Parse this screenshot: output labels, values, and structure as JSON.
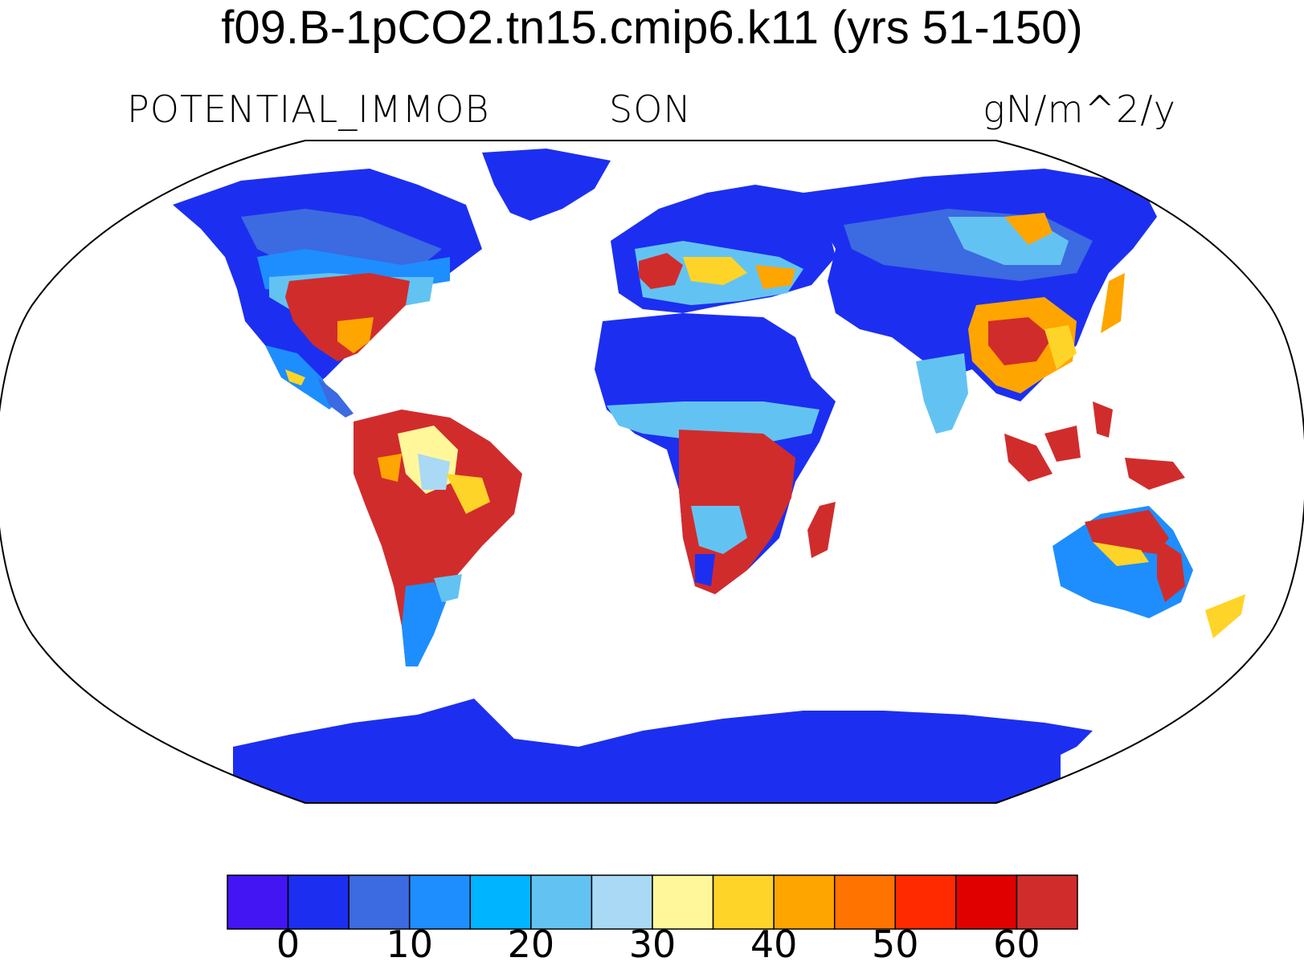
{
  "title": "f09.B-1pCO2.tn15.cmip6.k11 (yrs 51-150)",
  "subtitle": {
    "left": "POTENTIAL_IMMOB",
    "center": "SON",
    "right": "gN/m^2/y"
  },
  "map": {
    "projection": "Robinson",
    "land_mask_only": true
  },
  "colorbar": {
    "colors": [
      "#4215f2",
      "#1c2ff0",
      "#3c6ae0",
      "#1e8eff",
      "#00b4ff",
      "#62c3f2",
      "#a9d9f4",
      "#fff79a",
      "#ffd428",
      "#ffa500",
      "#ff7300",
      "#ff2a00",
      "#e00000",
      "#d12c2c"
    ],
    "tick_values": [
      0,
      5,
      10,
      15,
      20,
      25,
      30,
      35,
      40,
      45,
      50,
      55,
      60
    ],
    "tick_labels": [
      "0",
      "10",
      "20",
      "30",
      "40",
      "50",
      "60"
    ],
    "labeled_ticks": [
      0,
      10,
      20,
      30,
      40,
      50,
      60
    ]
  }
}
